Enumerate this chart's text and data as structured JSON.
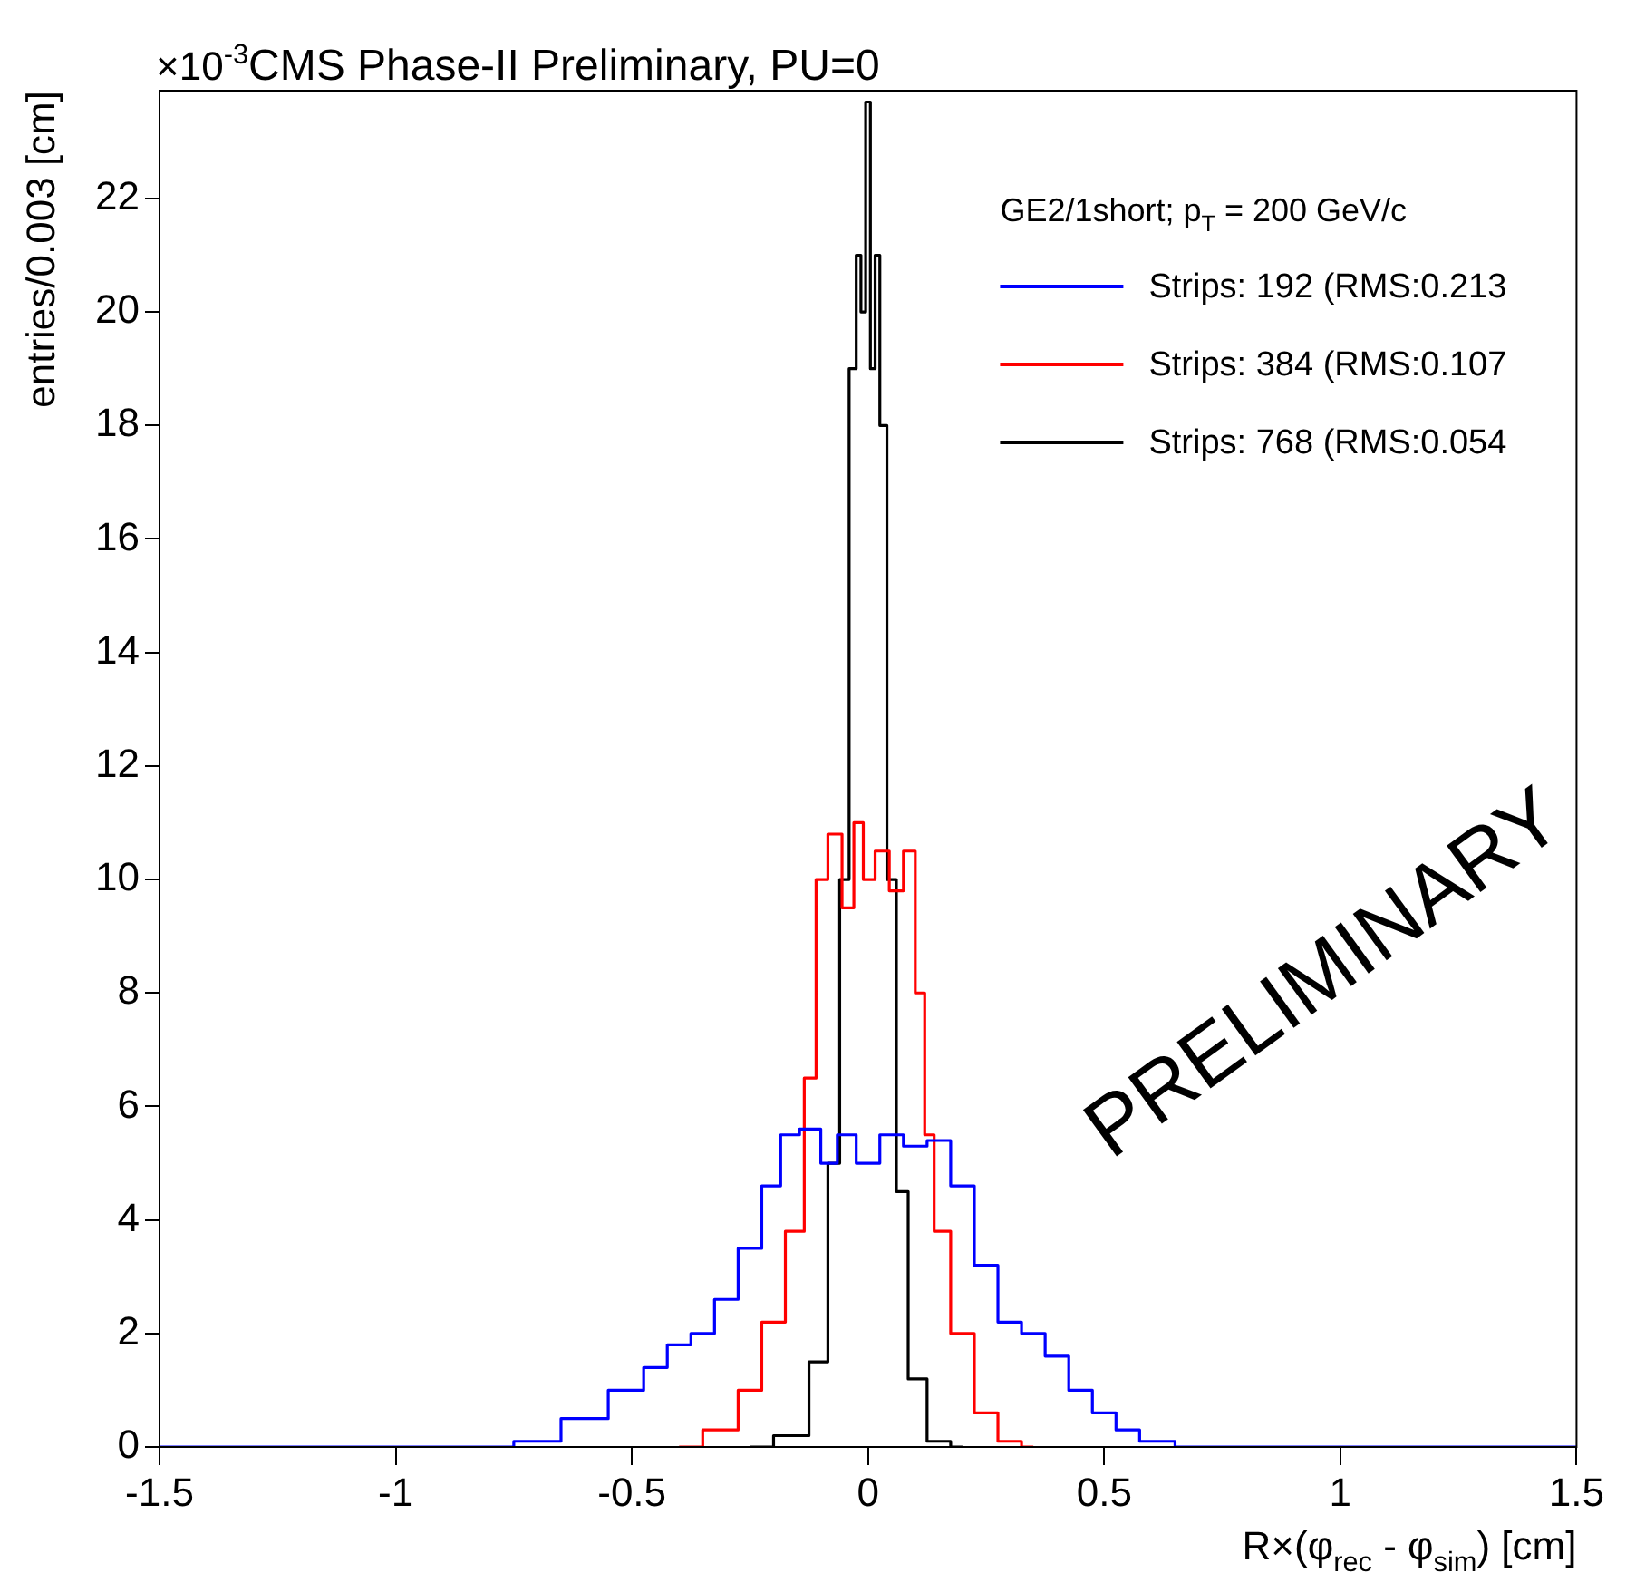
{
  "chart_data": {
    "type": "step",
    "title": "CMS Phase-II Preliminary, PU=0",
    "xlabel": "R×(φ$_{rec}$ - φ$_{sim}$) [cm]",
    "ylabel": "entries/0.003 [cm]",
    "legend_title": "GE2/1short; p$_{T}$ = 200 GeV/c",
    "annotations": [
      "×10$^{-3}$",
      "PRELIMINARY"
    ],
    "xlim": [
      -1.5,
      1.5
    ],
    "xticks": [
      -1.5,
      -1,
      -0.5,
      0,
      0.5,
      1,
      1.5
    ],
    "ylim": [
      0,
      23.9
    ],
    "yticks": [
      0,
      2,
      4,
      6,
      8,
      10,
      12,
      14,
      16,
      18,
      20,
      22
    ],
    "grid": false,
    "legend": "top right",
    "marker": "none",
    "line_style": "solid",
    "series": [
      {
        "name": "Strips: 192 (RMS:0.213",
        "color": "#0000ff",
        "x": [
          -1.5,
          -0.8,
          -0.7,
          -0.6,
          -0.5,
          -0.45,
          -0.4,
          -0.35,
          -0.3,
          -0.25,
          -0.2,
          -0.17,
          -0.12,
          -0.08,
          -0.05,
          0,
          0.05,
          0.1,
          0.15,
          0.2,
          0.25,
          0.3,
          0.35,
          0.4,
          0.45,
          0.5,
          0.55,
          0.6,
          0.7,
          1.5
        ],
        "values": [
          0,
          0,
          0.1,
          0.5,
          1,
          1.4,
          1.8,
          2,
          2.6,
          3.5,
          4.6,
          5.5,
          5.6,
          5,
          5.5,
          5,
          5.5,
          5.3,
          5.4,
          4.6,
          3.2,
          2.2,
          2,
          1.6,
          1,
          0.6,
          0.3,
          0.1,
          0,
          0
        ]
      },
      {
        "name": "Strips: 384 (RMS:0.107",
        "color": "#ff0000",
        "x": [
          -0.4,
          -0.3,
          -0.25,
          -0.2,
          -0.15,
          -0.12,
          -0.1,
          -0.07,
          -0.04,
          -0.02,
          0,
          0.03,
          0.06,
          0.09,
          0.11,
          0.13,
          0.15,
          0.2,
          0.25,
          0.3,
          0.35
        ],
        "values": [
          0,
          0.3,
          1,
          2.2,
          3.8,
          6.5,
          10,
          10.8,
          9.5,
          11,
          10,
          10.5,
          9.8,
          10.5,
          8,
          5.5,
          3.8,
          2,
          0.6,
          0.1,
          0
        ]
      },
      {
        "name": "Strips: 768 (RMS:0.054",
        "color": "#000000",
        "x": [
          -0.25,
          -0.15,
          -0.1,
          -0.07,
          -0.05,
          -0.03,
          -0.02,
          -0.01,
          0,
          0.01,
          0.02,
          0.03,
          0.05,
          0.07,
          0.1,
          0.15,
          0.2
        ],
        "values": [
          0,
          0.2,
          1.5,
          5,
          10,
          19,
          21,
          20,
          23.7,
          19,
          21,
          18,
          10,
          4.5,
          1.2,
          0.1,
          0
        ]
      }
    ]
  }
}
